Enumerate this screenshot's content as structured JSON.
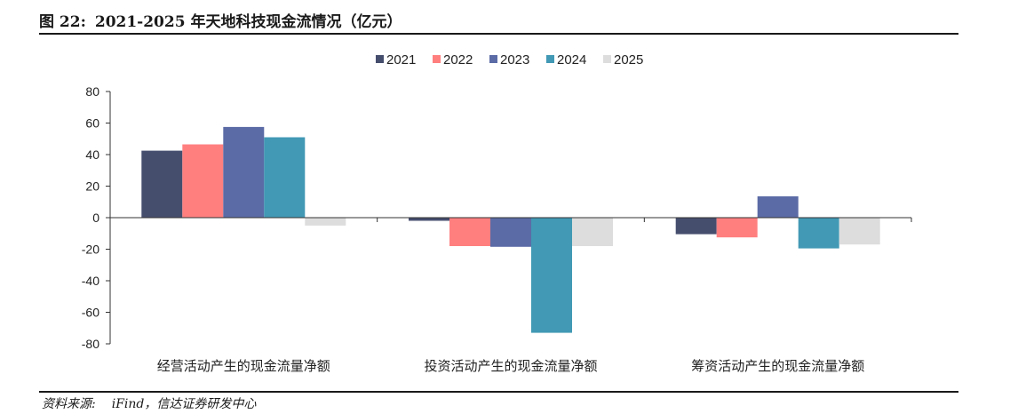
{
  "figure": {
    "label": "图 22:",
    "title": "2021-2025 年天地科技现金流情况（亿元）",
    "source_label": "资料来源:",
    "source_text": "iFind，信达证券研发中心"
  },
  "chart_data": {
    "type": "bar",
    "categories": [
      "经营活动产生的现金流量净额",
      "投资活动产生的现金流量净额",
      "筹资活动产生的现金流量净额"
    ],
    "series": [
      {
        "name": "2021",
        "color": "#464E6E",
        "values": [
          42.5,
          -2.0,
          -10.5
        ]
      },
      {
        "name": "2022",
        "color": "#FF7F7F",
        "values": [
          46.5,
          -18.0,
          -12.5
        ]
      },
      {
        "name": "2023",
        "color": "#5B6BA6",
        "values": [
          57.5,
          -18.5,
          13.5
        ]
      },
      {
        "name": "2024",
        "color": "#4199B5",
        "values": [
          51.0,
          -73.0,
          -19.5
        ]
      },
      {
        "name": "2025",
        "color": "#DDDDDD",
        "values": [
          -5.0,
          -18.0,
          -17.0
        ]
      }
    ],
    "ylim": [
      -80,
      80
    ],
    "yticks": [
      "80",
      "60",
      "40",
      "20",
      "0",
      "-20",
      "-40",
      "-60",
      "-80"
    ],
    "ytick_values": [
      80,
      60,
      40,
      20,
      0,
      -20,
      -40,
      -60,
      -80
    ],
    "legend_position": "top-center",
    "grid": false
  }
}
